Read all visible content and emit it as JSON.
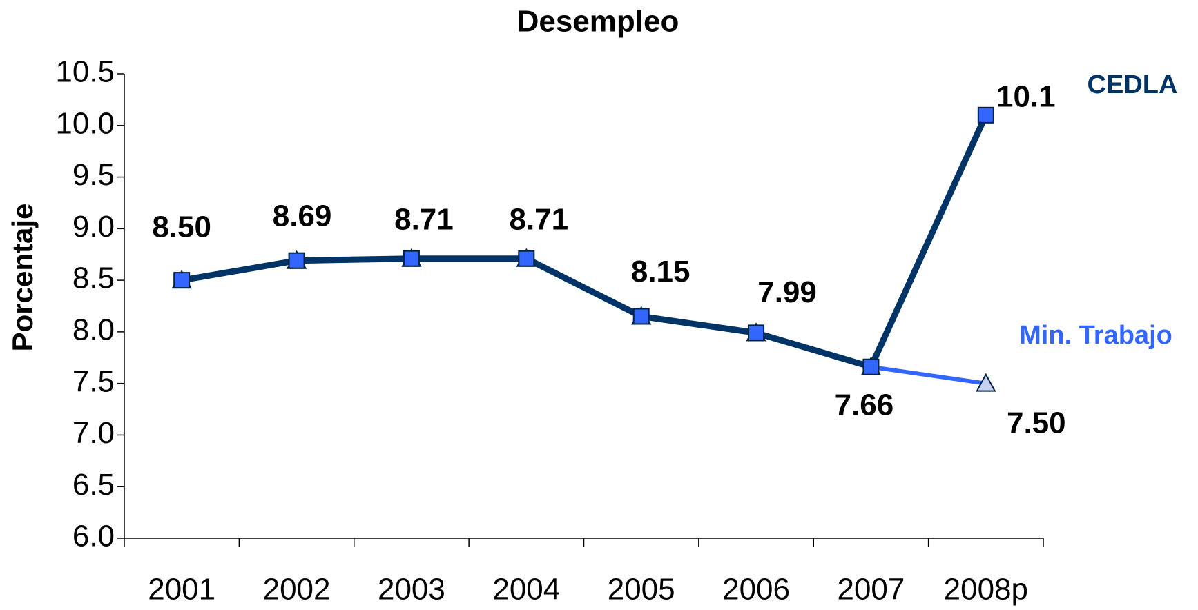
{
  "chart_data": {
    "type": "line",
    "title": "Desempleo",
    "y_label": "Porcentaje",
    "categories": [
      "2001",
      "2002",
      "2003",
      "2004",
      "2005",
      "2006",
      "2007",
      "2008p"
    ],
    "series": [
      {
        "name": "CEDLA",
        "color": "#003366",
        "marker_color": "#3366ff",
        "marker": "square",
        "values": [
          8.5,
          8.69,
          8.71,
          8.71,
          8.15,
          7.99,
          7.66,
          10.1
        ],
        "value_labels": [
          "8.50",
          "8.69",
          "8.71",
          "8.71",
          "8.15",
          "7.99",
          "7.66",
          "10.1"
        ]
      },
      {
        "name": "Min. Trabajo",
        "color": "#3366ff",
        "marker_color": "#c8d0f0",
        "marker": "triangle",
        "values": [
          8.5,
          8.69,
          8.71,
          8.71,
          8.15,
          7.99,
          7.66,
          7.5
        ],
        "value_labels": [
          null,
          null,
          null,
          null,
          null,
          null,
          null,
          "7.50"
        ]
      }
    ],
    "ylim": [
      6,
      10.5
    ],
    "yticks": [
      {
        "value": 6,
        "label": "6.0"
      },
      6.5,
      {
        "value": 7,
        "label": "7.0"
      },
      7.5,
      {
        "value": 8,
        "label": "8.0"
      },
      8.5,
      {
        "value": 9,
        "label": "9.0"
      },
      9.5,
      {
        "value": 10,
        "label": "10.0"
      },
      10.5
    ],
    "grid": false
  }
}
